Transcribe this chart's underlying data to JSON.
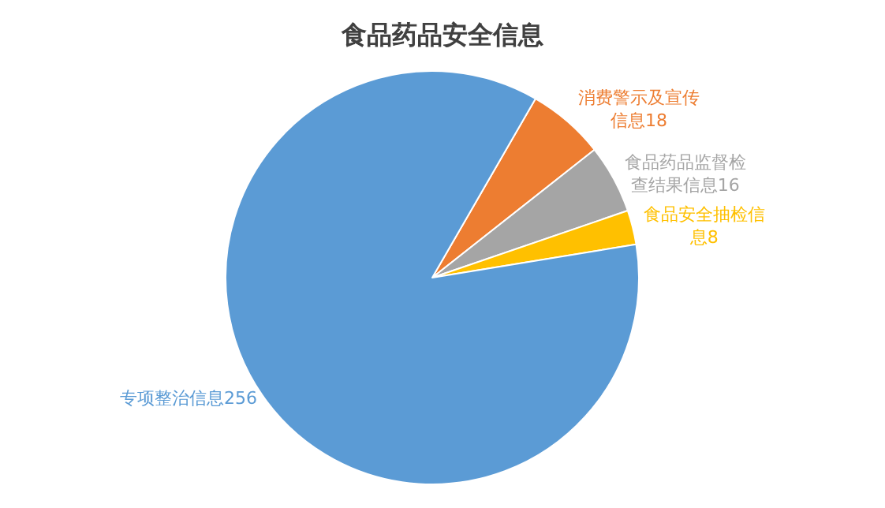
{
  "chart_data": {
    "type": "pie",
    "title": "食品药品安全信息",
    "categories": [
      "消费警示及宣传信息",
      "食品药品监督检查结果信息",
      "食品安全抽检信息",
      "专项整治信息"
    ],
    "values": [
      18,
      16,
      8,
      256
    ],
    "colors": [
      "#ed7d31",
      "#a5a5a5",
      "#ffc000",
      "#5b9bd5"
    ],
    "data_labels": true,
    "legend": false
  }
}
